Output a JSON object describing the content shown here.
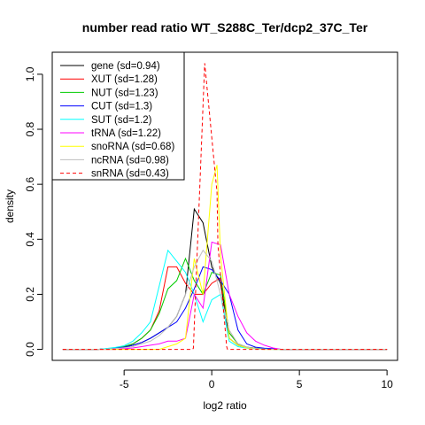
{
  "chart_data": {
    "type": "line",
    "title": "number read ratio WT_S288C_Ter/dcp2_37C_Ter",
    "xlabel": "log2 ratio",
    "ylabel": "density",
    "xlim": [
      -9.1,
      10.6
    ],
    "ylim": [
      -0.04,
      1.08
    ],
    "x_ticks": [
      -5,
      0,
      5,
      10
    ],
    "x_tick_labels": [
      "-5",
      "0",
      "5",
      "10"
    ],
    "y_ticks": [
      0.0,
      0.2,
      0.4,
      0.6,
      0.8,
      1.0
    ],
    "y_tick_labels": [
      "0.0",
      "0.2",
      "0.4",
      "0.6",
      "0.8",
      "1.0"
    ],
    "grid": false,
    "legend_position": "top-left",
    "series": [
      {
        "name": "gene (sd=0.94)",
        "color": "#000000",
        "dash": "solid",
        "x": [
          -8.5,
          -6.5,
          -6,
          -5.5,
          -5,
          -4.5,
          -4,
          -3.5,
          -3,
          -2.5,
          -2,
          -1.5,
          -1,
          -0.5,
          0,
          0.5,
          1,
          1.5,
          2,
          2.5,
          3,
          3.5,
          4,
          10
        ],
        "y": [
          0,
          0,
          0.002,
          0.004,
          0.008,
          0.015,
          0.025,
          0.04,
          0.06,
          0.08,
          0.12,
          0.2,
          0.51,
          0.46,
          0.3,
          0.24,
          0.04,
          0.015,
          0.005,
          0.003,
          0.002,
          0.001,
          0,
          0
        ]
      },
      {
        "name": "XUT (sd=1.28)",
        "color": "#ff0000",
        "dash": "solid",
        "x": [
          -8.5,
          -6.5,
          -6,
          -5.5,
          -5,
          -4.5,
          -4,
          -3.5,
          -3,
          -2.5,
          -2,
          -1.5,
          -1,
          -0.5,
          0,
          0.5,
          1,
          1.5,
          2,
          2.5,
          3,
          3.5,
          4,
          10
        ],
        "y": [
          0,
          0,
          0.002,
          0.005,
          0.01,
          0.02,
          0.04,
          0.07,
          0.14,
          0.3,
          0.3,
          0.24,
          0.2,
          0.2,
          0.24,
          0.26,
          0.06,
          0.02,
          0.008,
          0.004,
          0.002,
          0.001,
          0,
          0
        ]
      },
      {
        "name": "NUT (sd=1.23)",
        "color": "#00cc00",
        "dash": "solid",
        "x": [
          -8.5,
          -6.5,
          -6,
          -5.5,
          -5,
          -4.5,
          -4,
          -3.5,
          -3,
          -2.5,
          -2,
          -1.5,
          -1,
          -0.5,
          0,
          0.5,
          1,
          1.5,
          2,
          2.5,
          3,
          3.5,
          4,
          10
        ],
        "y": [
          0,
          0,
          0.002,
          0.005,
          0.01,
          0.02,
          0.04,
          0.07,
          0.13,
          0.22,
          0.25,
          0.33,
          0.25,
          0.2,
          0.28,
          0.27,
          0.06,
          0.02,
          0.008,
          0.004,
          0.002,
          0.001,
          0,
          0
        ]
      },
      {
        "name": "CUT (sd=1.3)",
        "color": "#0000ff",
        "dash": "solid",
        "x": [
          -8.5,
          -6.5,
          -6,
          -5.5,
          -5,
          -4.5,
          -4,
          -3.5,
          -3,
          -2.5,
          -2,
          -1.5,
          -1,
          -0.5,
          0,
          0.5,
          1,
          1.5,
          2,
          2.5,
          3,
          3.5,
          4,
          10
        ],
        "y": [
          0,
          0,
          0.002,
          0.004,
          0.008,
          0.015,
          0.025,
          0.04,
          0.06,
          0.08,
          0.1,
          0.15,
          0.22,
          0.3,
          0.29,
          0.25,
          0.2,
          0.07,
          0.02,
          0.008,
          0.004,
          0.002,
          0,
          0
        ]
      },
      {
        "name": "SUT (sd=1.2)",
        "color": "#00ffff",
        "dash": "solid",
        "x": [
          -8.5,
          -6.5,
          -6,
          -5.5,
          -5,
          -4.5,
          -4,
          -3.5,
          -3,
          -2.5,
          -2,
          -1.5,
          -1,
          -0.5,
          0,
          0.5,
          1,
          1.5,
          2,
          2.5,
          3,
          3.5,
          4,
          10
        ],
        "y": [
          0,
          0,
          0.003,
          0.007,
          0.013,
          0.03,
          0.06,
          0.1,
          0.23,
          0.36,
          0.32,
          0.28,
          0.2,
          0.1,
          0.18,
          0.2,
          0.03,
          0.01,
          0.004,
          0.002,
          0.001,
          0,
          0,
          0
        ]
      },
      {
        "name": "tRNA (sd=1.22)",
        "color": "#ff00ff",
        "dash": "solid",
        "x": [
          -8.5,
          -6.5,
          -6,
          -5.5,
          -5,
          -4.5,
          -4,
          -3.5,
          -3,
          -2.5,
          -2,
          -1.5,
          -1,
          -0.5,
          0,
          0.5,
          1,
          1.5,
          2,
          2.5,
          3,
          3.5,
          4,
          10
        ],
        "y": [
          0,
          0,
          0,
          0,
          0.002,
          0.005,
          0.01,
          0.015,
          0.02,
          0.03,
          0.03,
          0.04,
          0.2,
          0.15,
          0.39,
          0.38,
          0.2,
          0.12,
          0.06,
          0.03,
          0.015,
          0.005,
          0,
          0
        ]
      },
      {
        "name": "snoRNA (sd=0.68)",
        "color": "#ffff00",
        "dash": "solid",
        "x": [
          -8.5,
          -3,
          -2.5,
          -2,
          -1.5,
          -1,
          -0.5,
          0,
          0.3,
          0.5,
          1,
          1.5,
          2,
          2.5,
          3,
          10
        ],
        "y": [
          0,
          0,
          0.01,
          0.02,
          0.04,
          0.33,
          0.2,
          0.6,
          0.67,
          0.34,
          0.04,
          0.015,
          0.005,
          0.002,
          0,
          0
        ]
      },
      {
        "name": "ncRNA (sd=0.98)",
        "color": "#bebebe",
        "dash": "solid",
        "x": [
          -8.5,
          -6.5,
          -6,
          -5.5,
          -5,
          -4.5,
          -4,
          -3.5,
          -3,
          -2.5,
          -2,
          -1.5,
          -1,
          -0.5,
          0,
          0.5,
          1,
          1.5,
          2,
          2.5,
          3,
          3.5,
          4,
          10
        ],
        "y": [
          0,
          0,
          0.001,
          0.003,
          0.006,
          0.01,
          0.02,
          0.03,
          0.05,
          0.08,
          0.12,
          0.2,
          0.3,
          0.36,
          0.32,
          0.2,
          0.07,
          0.02,
          0.008,
          0.003,
          0.001,
          0,
          0,
          0
        ]
      },
      {
        "name": "snRNA (sd=0.43)",
        "color": "#ff0000",
        "dash": "dashed",
        "x": [
          -8.5,
          -1.1,
          -1.05,
          -0.4,
          0.3,
          0.35,
          0.85,
          0.9,
          10
        ],
        "y": [
          0,
          0,
          0.004,
          1.04,
          0.57,
          0.38,
          0.01,
          0,
          0
        ]
      }
    ]
  }
}
